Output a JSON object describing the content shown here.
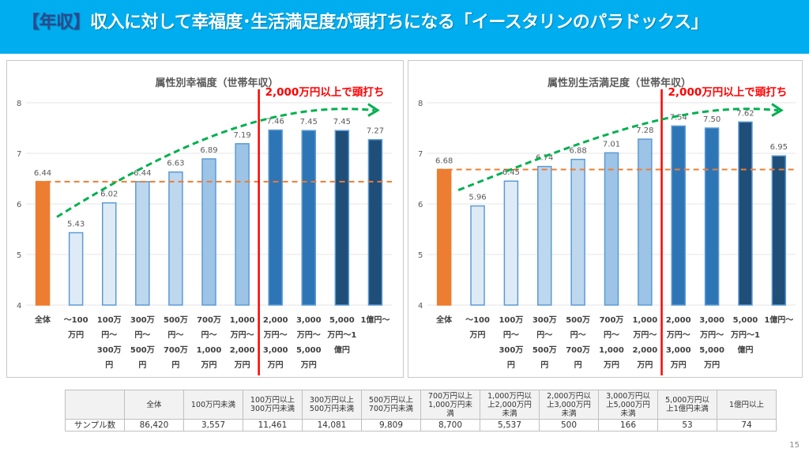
{
  "header": {
    "tag": "【年収】",
    "title": "収入に対して幸福度･生活満足度が頭打ちになる「イースタリンのパラドックス」"
  },
  "chart_data": [
    {
      "type": "bar",
      "title": "属性別幸福度（世帯年収）",
      "xlabel": "",
      "ylabel": "",
      "ylim": [
        4,
        8
      ],
      "yticks": [
        "4",
        "5",
        "6",
        "7",
        "8"
      ],
      "grid": true,
      "categories": [
        [
          "全体"
        ],
        [
          "～100",
          "万円"
        ],
        [
          "100万",
          "円～",
          "300万",
          "円"
        ],
        [
          "300万",
          "円～",
          "500万",
          "円"
        ],
        [
          "500万",
          "円～",
          "700万",
          "円"
        ],
        [
          "700万",
          "円～",
          "1,000",
          "万円"
        ],
        [
          "1,000",
          "万円～",
          "2,000",
          "万円"
        ],
        [
          "2,000",
          "万円～",
          "3,000",
          "万円"
        ],
        [
          "3,000",
          "万円～",
          "5,000",
          "万円"
        ],
        [
          "5,000",
          "万円～1",
          "億円"
        ],
        [
          "1億円～"
        ]
      ],
      "values": [
        6.44,
        5.43,
        6.02,
        6.44,
        6.63,
        6.89,
        7.19,
        7.46,
        7.45,
        7.45,
        7.27
      ],
      "value_labels": [
        "6.44",
        "5.43",
        "6.02",
        "6.44",
        "6.63",
        "6.89",
        "7.19",
        "7.46",
        "7.45",
        "7.45",
        "7.27"
      ],
      "bar_fills": [
        "#ed7d31",
        "#deebf7",
        "#deebf7",
        "#bdd7ee",
        "#bdd7ee",
        "#9dc3e6",
        "#9dc3e6",
        "#2e75b6",
        "#2e75b6",
        "#1f4e79",
        "#1f4e79"
      ],
      "reference_line": {
        "value": 6.44,
        "color": "#ed7d31",
        "style": "dashed"
      },
      "divider": {
        "after_category_index": 6,
        "color": "#ff0000"
      },
      "annotation": {
        "text": "2,000万円以上で頭打ち",
        "color": "#ff0000"
      },
      "trend_arrow": {
        "color": "#00b050",
        "style": "dashed"
      }
    },
    {
      "type": "bar",
      "title": "属性別生活満足度（世帯年収）",
      "xlabel": "",
      "ylabel": "",
      "ylim": [
        4,
        8
      ],
      "yticks": [
        "4",
        "5",
        "6",
        "7",
        "8"
      ],
      "grid": true,
      "categories": [
        [
          "全体"
        ],
        [
          "～100",
          "万円"
        ],
        [
          "100万",
          "円～",
          "300万",
          "円"
        ],
        [
          "300万",
          "円～",
          "500万",
          "円"
        ],
        [
          "500万",
          "円～",
          "700万",
          "円"
        ],
        [
          "700万",
          "円～",
          "1,000",
          "万円"
        ],
        [
          "1,000",
          "万円～",
          "2,000",
          "万円"
        ],
        [
          "2,000",
          "万円～",
          "3,000",
          "万円"
        ],
        [
          "3,000",
          "万円～",
          "5,000",
          "万円"
        ],
        [
          "5,000",
          "万円～1",
          "億円"
        ],
        [
          "1億円～"
        ]
      ],
      "values": [
        6.68,
        5.96,
        6.45,
        6.74,
        6.88,
        7.01,
        7.28,
        7.54,
        7.5,
        7.62,
        6.95
      ],
      "value_labels": [
        "6.68",
        "5.96",
        "6.45",
        "6.74",
        "6.88",
        "7.01",
        "7.28",
        "7.54",
        "7.50",
        "7.62",
        "6.95"
      ],
      "bar_fills": [
        "#ed7d31",
        "#deebf7",
        "#deebf7",
        "#bdd7ee",
        "#bdd7ee",
        "#9dc3e6",
        "#9dc3e6",
        "#2e75b6",
        "#2e75b6",
        "#1f4e79",
        "#1f4e79"
      ],
      "reference_line": {
        "value": 6.68,
        "color": "#ed7d31",
        "style": "dashed"
      },
      "divider": {
        "after_category_index": 6,
        "color": "#ff0000"
      },
      "annotation": {
        "text": "2,000万円以上で頭打ち",
        "color": "#ff0000"
      },
      "trend_arrow": {
        "color": "#00b050",
        "style": "dashed"
      }
    }
  ],
  "sample_table": {
    "headers": [
      "",
      "全体",
      "100万円未満",
      "100万円以上\n300万円未満",
      "300万円以上\n500万円未満",
      "500万円以上\n700万円未満",
      "700万円以上\n1,000万円未\n満",
      "1,000万円以\n上2,000万円\n未満",
      "2,000万円以\n上3,000万円\n未満",
      "3,000万円以\n上5,000万円\n未満",
      "5,000万円以\n上1億円未満",
      "1億円以上"
    ],
    "row_label": "サンプル数",
    "values": [
      "86,420",
      "3,557",
      "11,461",
      "14,081",
      "9,809",
      "8,700",
      "5,537",
      "500",
      "166",
      "53",
      "74"
    ]
  },
  "page_number": "15"
}
